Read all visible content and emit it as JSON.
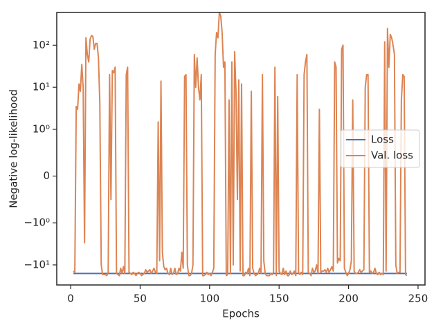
{
  "chart_data": {
    "type": "line",
    "xlabel": "Epochs",
    "ylabel": "Negative log-likelihood",
    "xlim": [
      -10,
      255
    ],
    "xticks": [
      0,
      50,
      100,
      150,
      200,
      250
    ],
    "ylim": [
      -30,
      600
    ],
    "yscale": "symlog",
    "linthresh": 1,
    "linscale": 1,
    "yticks": [
      {
        "value": -10,
        "label": "−10¹"
      },
      {
        "value": -1,
        "label": "−10⁰"
      },
      0,
      {
        "value": 1,
        "label": "10⁰"
      },
      {
        "value": 10,
        "label": "10¹"
      },
      {
        "value": 100,
        "label": "10²"
      }
    ],
    "legend": "center right",
    "series": [
      {
        "name": "Loss",
        "color": "#4c72b0",
        "x": [
          2,
          242
        ],
        "values": [
          -16,
          -16
        ]
      },
      {
        "name": "Val. loss",
        "color": "#dd8452",
        "x": [
          2,
          3,
          4,
          5,
          6,
          7,
          8,
          9,
          10,
          11,
          12,
          13,
          14,
          15,
          16,
          17,
          18,
          19,
          20,
          21,
          22,
          23,
          24,
          25,
          26,
          27,
          28,
          29,
          30,
          31,
          32,
          33,
          34,
          35,
          36,
          37,
          38,
          39,
          40,
          41,
          42,
          43,
          44,
          45,
          46,
          47,
          48,
          49,
          50,
          51,
          52,
          53,
          54,
          55,
          56,
          57,
          58,
          59,
          60,
          61,
          62,
          63,
          64,
          65,
          66,
          67,
          68,
          69,
          70,
          71,
          72,
          73,
          74,
          75,
          76,
          77,
          78,
          79,
          80,
          81,
          82,
          83,
          84,
          85,
          86,
          87,
          88,
          89,
          90,
          91,
          92,
          93,
          94,
          95,
          96,
          97,
          98,
          99,
          100,
          101,
          102,
          103,
          104,
          105,
          106,
          107,
          108,
          109,
          110,
          111,
          112,
          113,
          114,
          115,
          116,
          117,
          118,
          119,
          120,
          121,
          122,
          123,
          124,
          125,
          126,
          127,
          128,
          129,
          130,
          131,
          132,
          133,
          134,
          135,
          136,
          137,
          138,
          139,
          140,
          141,
          142,
          143,
          144,
          145,
          146,
          147,
          148,
          149,
          150,
          151,
          152,
          153,
          154,
          155,
          156,
          157,
          158,
          159,
          160,
          161,
          162,
          163,
          164,
          165,
          166,
          167,
          168,
          169,
          170,
          171,
          172,
          173,
          174,
          175,
          176,
          177,
          178,
          179,
          180,
          181,
          182,
          183,
          184,
          185,
          186,
          187,
          188,
          189,
          190,
          191,
          192,
          193,
          194,
          195,
          196,
          197,
          198,
          199,
          200,
          201,
          202,
          203,
          204,
          205,
          206,
          207,
          208,
          209,
          210,
          211,
          212,
          213,
          214,
          215,
          216,
          217,
          218,
          219,
          220,
          221,
          222,
          223,
          224,
          225,
          226,
          227,
          228,
          229,
          230,
          231,
          232,
          233,
          234,
          235,
          236,
          237,
          238,
          239,
          240,
          241,
          242
        ],
        "values": [
          -14,
          -15,
          3.5,
          3,
          12,
          8,
          35,
          10,
          -3,
          150,
          60,
          40,
          140,
          170,
          160,
          80,
          110,
          110,
          50,
          4,
          -10,
          -17,
          -17,
          -17,
          -18,
          -15,
          20,
          -0.5,
          25,
          22,
          30,
          -16,
          -17,
          -18,
          -12,
          -16,
          -11,
          -16,
          20,
          30,
          -15,
          -16,
          -17,
          -15,
          -16,
          -18,
          -16,
          -15,
          -16,
          -18,
          -17,
          -16,
          -13,
          -15,
          -14,
          -13,
          -16,
          -14,
          -12,
          -15,
          -16,
          1.5,
          -8,
          14,
          -5,
          -11,
          -13,
          -12,
          -16,
          -17,
          -12,
          -17,
          -16,
          -12,
          -17,
          -16,
          -12,
          -14,
          -5,
          -12,
          18,
          20,
          -10,
          -18,
          -18,
          -16,
          -10,
          60,
          10,
          50,
          10,
          5,
          20,
          -18,
          -18,
          -17,
          -15,
          -17,
          -16,
          -18,
          -15,
          -12,
          60,
          200,
          150,
          600,
          500,
          200,
          30,
          40,
          -18,
          -17,
          5,
          -16,
          40,
          -10,
          70,
          8,
          -0.5,
          15,
          -14,
          12,
          -18,
          -18,
          -15,
          -16,
          -12,
          -18,
          8,
          -12,
          -16,
          -18,
          -17,
          -16,
          -12,
          -16,
          20,
          -8,
          -16,
          -18,
          -18,
          -18,
          -16,
          -17,
          -15,
          30,
          -18,
          6,
          -14,
          -16,
          -17,
          -12,
          -17,
          -14,
          -18,
          -18,
          -14,
          -17,
          -16,
          -14,
          -18,
          20,
          -15,
          -17,
          -15,
          -17,
          20,
          40,
          60,
          -15,
          -16,
          -18,
          -12,
          -15,
          -14,
          -10,
          -16,
          3,
          -15,
          -14,
          -14,
          -13,
          -15,
          -12,
          -15,
          -13,
          -11,
          -14,
          40,
          30,
          -9,
          -7,
          -8,
          80,
          100,
          -12,
          -15,
          -18,
          -16,
          -13,
          -8,
          5,
          -14,
          -16,
          -16,
          -15,
          -13,
          -15,
          -14,
          -13,
          10,
          20,
          20,
          -15,
          -14,
          -16,
          -15,
          -12,
          -16,
          -17,
          -15,
          -17,
          -16,
          -17,
          120,
          -14,
          250,
          30,
          180,
          150,
          100,
          60,
          -10,
          -16,
          -15,
          -15,
          5,
          20,
          18,
          -17,
          -18
        ]
      }
    ]
  }
}
